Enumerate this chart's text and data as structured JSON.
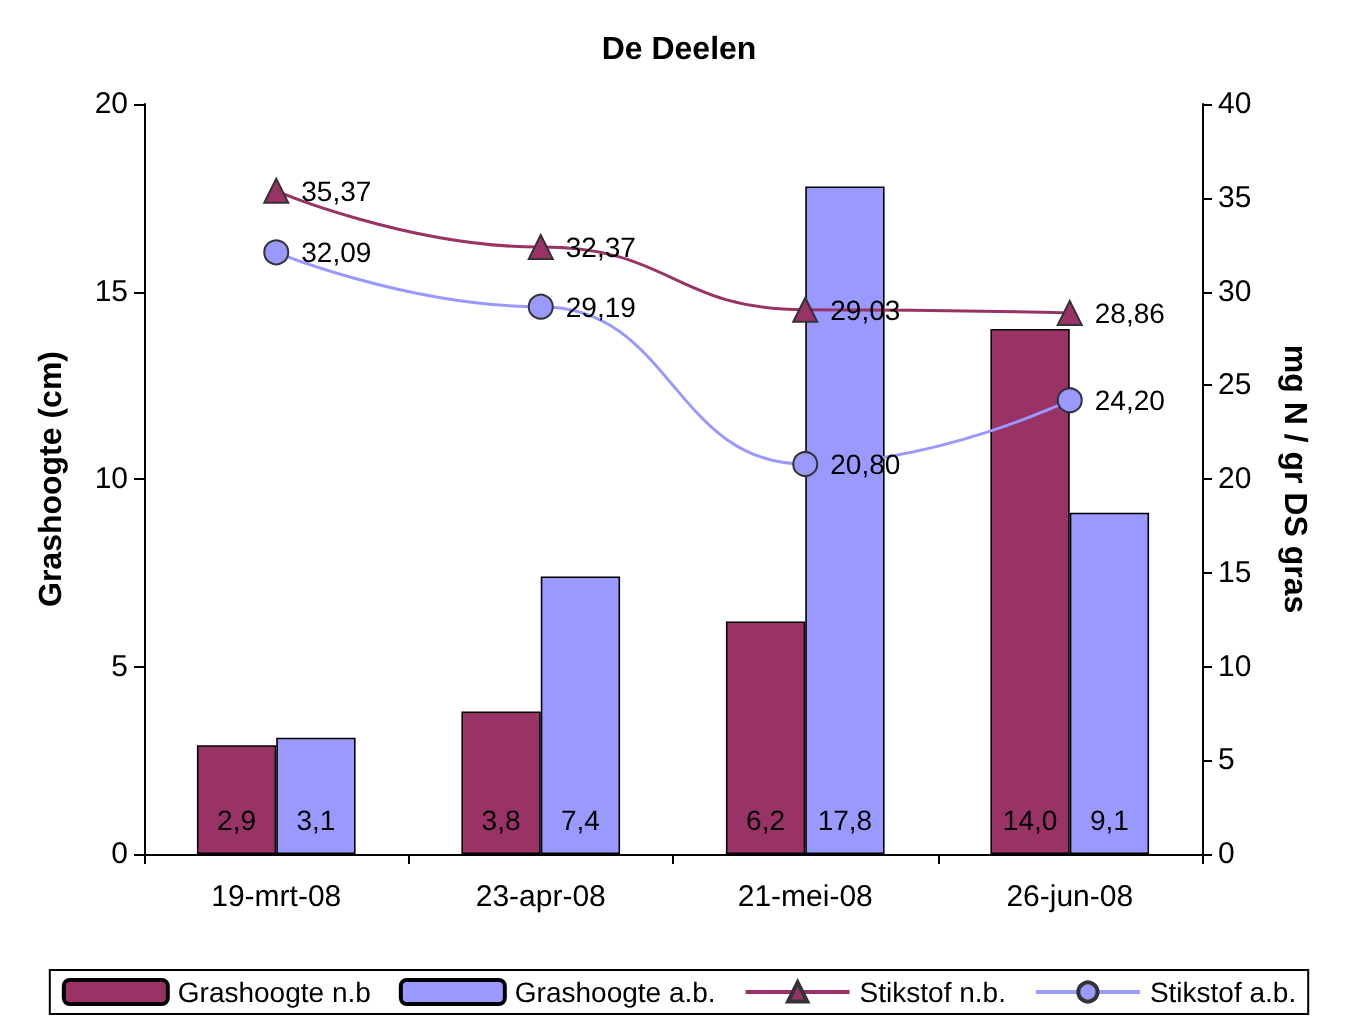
{
  "chart_data": {
    "type": "bar",
    "title": "De Deelen",
    "ylabel": "Grashoogte (cm)",
    "y2label": "mg N / gr DS gras",
    "categories": [
      "19-mrt-08",
      "23-apr-08",
      "21-mei-08",
      "26-jun-08"
    ],
    "series": [
      {
        "name": "Grashoogte n.b",
        "color": "#993366",
        "values": [
          2.9,
          3.8,
          6.2,
          14.0
        ],
        "value_labels": [
          "2,9",
          "3,8",
          "6,2",
          "14,0"
        ]
      },
      {
        "name": "Grashoogte a.b.",
        "color": "#9999ff",
        "values": [
          3.1,
          7.4,
          17.8,
          9.1
        ],
        "value_labels": [
          "3,1",
          "7,4",
          "17,8",
          "9,1"
        ]
      },
      {
        "name": "Stikstof n.b.",
        "type": "line",
        "axis": "y2",
        "marker": "triangle",
        "color": "#993366",
        "values": [
          35.37,
          32.37,
          29.03,
          28.86
        ],
        "value_labels": [
          "35,37",
          "32,37",
          "29,03",
          "28,86"
        ]
      },
      {
        "name": "Stikstof a.b.",
        "type": "line",
        "axis": "y2",
        "marker": "circle",
        "color": "#9999ff",
        "values": [
          32.09,
          29.19,
          20.8,
          24.2
        ],
        "value_labels": [
          "32,09",
          "29,19",
          "20,80",
          "24,20"
        ]
      }
    ],
    "ylim": [
      0,
      20
    ],
    "yticks": [
      0,
      5,
      10,
      15,
      20
    ],
    "y2lim": [
      0,
      40
    ],
    "y2ticks": [
      0,
      5,
      10,
      15,
      20,
      25,
      30,
      35,
      40
    ],
    "grid": false,
    "legend": "bottom"
  }
}
